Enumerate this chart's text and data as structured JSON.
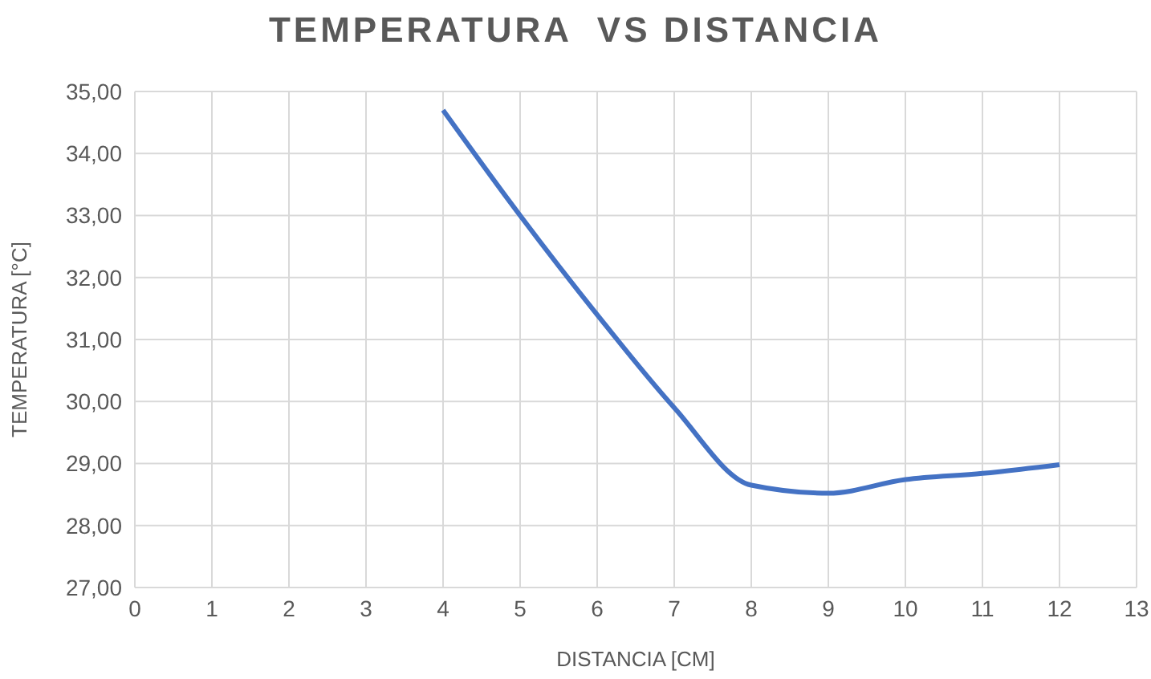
{
  "chart_data": {
    "type": "line",
    "title": "TEMPERATURA  VS DISTANCIA",
    "xlabel": "DISTANCIA [CM]",
    "ylabel": "TEMPERATURA [°C]",
    "x": [
      4,
      5,
      6,
      7,
      8,
      9,
      10,
      11,
      12
    ],
    "series": [
      {
        "color": "#4472c4",
        "values": [
          34.7,
          33.0,
          31.4,
          29.9,
          28.65,
          28.52,
          28.74,
          28.84,
          28.98
        ]
      }
    ],
    "xlim": [
      0,
      13
    ],
    "xticks": [
      0,
      1,
      2,
      3,
      4,
      5,
      6,
      7,
      8,
      9,
      10,
      11,
      12,
      13
    ],
    "ylim": [
      27,
      35
    ],
    "yticks": [
      {
        "value": 27,
        "label": "27,00"
      },
      {
        "value": 28,
        "label": "28,00"
      },
      {
        "value": 29,
        "label": "29,00"
      },
      {
        "value": 30,
        "label": "30,00"
      },
      {
        "value": 31,
        "label": "31,00"
      },
      {
        "value": 32,
        "label": "32,00"
      },
      {
        "value": 33,
        "label": "33,00"
      },
      {
        "value": 34,
        "label": "34,00"
      },
      {
        "value": 35,
        "label": "35,00"
      }
    ],
    "grid": true,
    "legend": false,
    "marker": "none",
    "line_style": "solid"
  }
}
